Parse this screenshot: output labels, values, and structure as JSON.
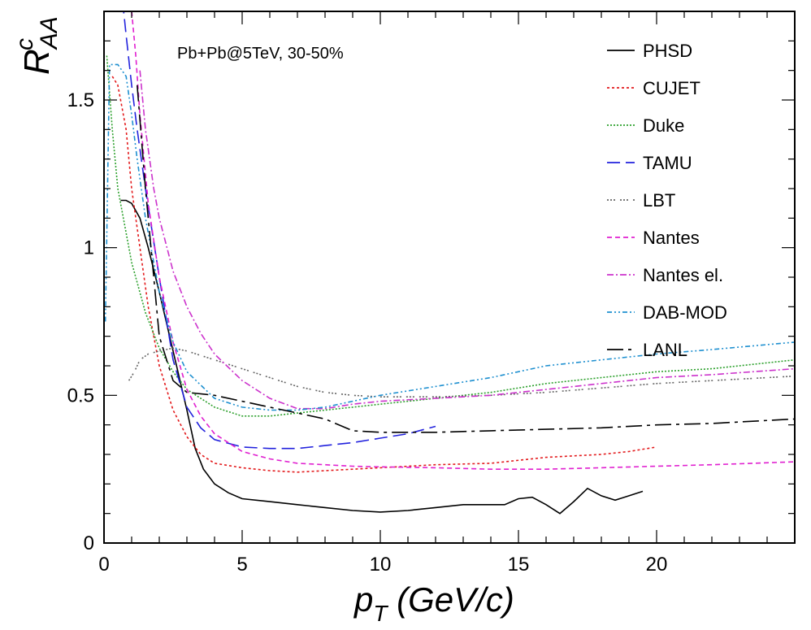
{
  "chart_data": {
    "type": "line",
    "title": "",
    "annotation": "Pb+Pb@5TeV, 30-50%",
    "xlabel": {
      "base": "p",
      "sub": "T",
      "rest": " (GeV/c)"
    },
    "ylabel": {
      "base": "R",
      "sup": "c",
      "sub": "AA"
    },
    "xlim": [
      0,
      25
    ],
    "ylim": [
      0,
      1.8
    ],
    "x_ticks": [
      0,
      5,
      10,
      15,
      20
    ],
    "x_tick_labels": [
      "0",
      "5",
      "10",
      "15",
      "20"
    ],
    "y_ticks": [
      0,
      0.5,
      1,
      1.5
    ],
    "y_tick_labels": [
      "0",
      "0.5",
      "1",
      "1.5"
    ],
    "legend_position": "top-right",
    "series": [
      {
        "name": "PHSD",
        "color": "#000000",
        "dash": "none",
        "x": [
          0.6,
          0.8,
          1.0,
          1.3,
          1.6,
          2.0,
          2.5,
          3.0,
          3.3,
          3.6,
          4.0,
          4.5,
          5.0,
          6.0,
          7.0,
          8.0,
          9.0,
          10.0,
          11.0,
          12.0,
          13.0,
          14.5,
          15.0,
          15.5,
          16.0,
          16.5,
          17.0,
          17.5,
          18.0,
          18.5,
          19.0,
          19.5
        ],
        "y": [
          1.16,
          1.16,
          1.15,
          1.1,
          1.0,
          0.85,
          0.65,
          0.45,
          0.32,
          0.25,
          0.2,
          0.17,
          0.15,
          0.14,
          0.13,
          0.12,
          0.11,
          0.105,
          0.11,
          0.12,
          0.13,
          0.13,
          0.15,
          0.155,
          0.13,
          0.1,
          0.14,
          0.185,
          0.16,
          0.145,
          0.16,
          0.175
        ]
      },
      {
        "name": "CUJET",
        "color": "#e31a1c",
        "dash": "3,3",
        "x": [
          0.3,
          0.5,
          0.8,
          1.0,
          1.3,
          1.6,
          2.0,
          2.5,
          3.0,
          3.5,
          4.0,
          5.0,
          6.0,
          7.0,
          8.0,
          9.0,
          10.0,
          12.0,
          14.0,
          16.0,
          18.0,
          19.0,
          20.0
        ],
        "y": [
          1.58,
          1.55,
          1.4,
          1.2,
          1.0,
          0.8,
          0.6,
          0.45,
          0.36,
          0.3,
          0.27,
          0.255,
          0.245,
          0.24,
          0.245,
          0.25,
          0.255,
          0.265,
          0.27,
          0.29,
          0.3,
          0.31,
          0.325
        ]
      },
      {
        "name": "Duke",
        "color": "#2ca02c",
        "dash": "2,2",
        "x": [
          0.1,
          0.3,
          0.5,
          1.0,
          1.5,
          2.0,
          2.5,
          3.0,
          4.0,
          5.0,
          6.0,
          7.0,
          8.0,
          9.0,
          10.0,
          12.0,
          14.0,
          16.0,
          18.0,
          20.0,
          22.0,
          25.0
        ],
        "y": [
          1.65,
          1.4,
          1.2,
          0.95,
          0.78,
          0.66,
          0.58,
          0.52,
          0.46,
          0.43,
          0.43,
          0.44,
          0.45,
          0.46,
          0.47,
          0.49,
          0.51,
          0.54,
          0.56,
          0.58,
          0.59,
          0.62
        ]
      },
      {
        "name": "TAMU",
        "color": "#2222dd",
        "dash": "16,7",
        "x": [
          0.6,
          0.8,
          1.0,
          1.2,
          1.5,
          2.0,
          2.5,
          3.0,
          3.5,
          4.0,
          5.0,
          6.0,
          7.0,
          8.0,
          9.0,
          10.0,
          11.0,
          12.0
        ],
        "y": [
          1.9,
          1.72,
          1.55,
          1.4,
          1.2,
          0.9,
          0.62,
          0.46,
          0.39,
          0.35,
          0.325,
          0.32,
          0.32,
          0.33,
          0.34,
          0.355,
          0.37,
          0.395
        ]
      },
      {
        "name": "LBT",
        "color": "#666666",
        "dash": "2,2,2,2,2,6",
        "x": [
          0.9,
          1.1,
          1.3,
          1.6,
          2.0,
          2.5,
          3.0,
          4.0,
          5.0,
          6.0,
          7.0,
          8.0,
          9.0,
          10.0,
          12.0,
          14.0,
          16.0,
          18.0,
          20.0,
          22.0,
          25.0
        ],
        "y": [
          0.55,
          0.58,
          0.62,
          0.64,
          0.65,
          0.66,
          0.65,
          0.62,
          0.59,
          0.56,
          0.53,
          0.51,
          0.5,
          0.495,
          0.495,
          0.5,
          0.51,
          0.525,
          0.54,
          0.55,
          0.565
        ]
      },
      {
        "name": "Nantes",
        "color": "#e020d0",
        "dash": "6,4",
        "x": [
          1.0,
          1.15,
          1.3,
          1.6,
          2.0,
          2.5,
          3.0,
          3.5,
          4.0,
          5.0,
          6.0,
          7.0,
          8.0,
          9.0,
          10.0,
          12.0,
          14.0,
          16.0,
          18.0,
          20.0,
          22.0,
          25.0
        ],
        "y": [
          1.8,
          1.65,
          1.45,
          1.15,
          0.9,
          0.68,
          0.52,
          0.43,
          0.37,
          0.31,
          0.285,
          0.27,
          0.265,
          0.26,
          0.258,
          0.255,
          0.25,
          0.25,
          0.255,
          0.26,
          0.265,
          0.275
        ]
      },
      {
        "name": "Nantes el.",
        "color": "#cc33cc",
        "dash": "8,3,2,3",
        "x": [
          1.3,
          1.5,
          1.8,
          2.0,
          2.5,
          3.0,
          3.5,
          4.0,
          5.0,
          6.0,
          7.0,
          8.0,
          9.0,
          10.0,
          12.0,
          14.0,
          16.0,
          18.0,
          20.0,
          22.0,
          25.0
        ],
        "y": [
          1.6,
          1.4,
          1.2,
          1.1,
          0.92,
          0.8,
          0.71,
          0.64,
          0.55,
          0.49,
          0.455,
          0.455,
          0.47,
          0.48,
          0.49,
          0.5,
          0.52,
          0.54,
          0.56,
          0.57,
          0.59
        ]
      },
      {
        "name": "DAB-MOD",
        "color": "#1f90d0",
        "dash": "6,3,2,3,2,3",
        "x": [
          0.05,
          0.2,
          0.5,
          0.8,
          1.0,
          1.2,
          1.5,
          2.0,
          2.5,
          3.0,
          4.0,
          5.0,
          6.0,
          7.0,
          8.0,
          9.0,
          10.0,
          12.0,
          14.0,
          16.0,
          18.0,
          20.0,
          22.0,
          25.0
        ],
        "y": [
          0.75,
          1.62,
          1.62,
          1.58,
          1.45,
          1.3,
          1.1,
          0.85,
          0.68,
          0.58,
          0.49,
          0.46,
          0.45,
          0.45,
          0.46,
          0.48,
          0.5,
          0.53,
          0.56,
          0.6,
          0.62,
          0.64,
          0.655,
          0.68
        ]
      },
      {
        "name": "LANL",
        "color": "#000000",
        "dash": "20,6,4,6",
        "x": [
          1.2,
          1.5,
          1.8,
          2.0,
          2.5,
          3.0,
          4.0,
          5.0,
          6.0,
          7.0,
          8.0,
          9.0,
          10.0,
          12.0,
          14.0,
          16.0,
          18.0,
          20.0,
          22.0,
          25.0
        ],
        "y": [
          1.55,
          1.2,
          0.9,
          0.7,
          0.55,
          0.51,
          0.5,
          0.48,
          0.46,
          0.44,
          0.42,
          0.38,
          0.375,
          0.375,
          0.38,
          0.385,
          0.39,
          0.4,
          0.405,
          0.42
        ]
      }
    ]
  }
}
